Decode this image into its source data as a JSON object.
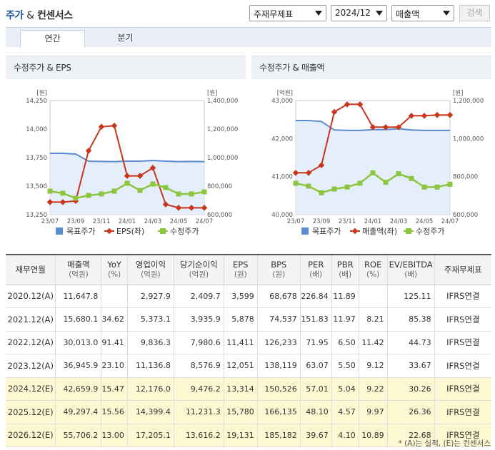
{
  "header": {
    "title_part1": "주가",
    "title_amp": "&",
    "title_part2": "컨센서스",
    "select1": "주재무제표",
    "select2": "2024/12",
    "select3": "매출액",
    "search_button": "검색"
  },
  "tabs": [
    {
      "label": "연간",
      "active": true
    },
    {
      "label": "분기",
      "active": false
    }
  ],
  "chart_left": {
    "title": "수정주가 & EPS",
    "left_unit": "[원]",
    "right_unit": "[원]",
    "left_ticks": [
      "14,250",
      "14,000",
      "13,750",
      "13,500",
      "13,250"
    ],
    "right_ticks": [
      "1,400,000",
      "1,200,000",
      "1,000,000",
      "800,000",
      "600,000"
    ],
    "x_ticks": [
      "23/07",
      "23/09",
      "23/11",
      "24/01",
      "24/03",
      "24/05",
      "24/07"
    ],
    "legend": [
      "목표주가",
      "EPS(좌)",
      "수정주가"
    ]
  },
  "chart_right": {
    "title": "수정주가 & 매출액",
    "left_unit": "[억원]",
    "right_unit": "[원]",
    "left_ticks": [
      "43,000",
      "42,000",
      "41,000",
      "40,000"
    ],
    "right_ticks": [
      "1,200,000",
      "1,000,000",
      "800,000",
      "600,000"
    ],
    "x_ticks": [
      "23/07",
      "23/09",
      "23/11",
      "24/01",
      "24/03",
      "24/05",
      "24/07"
    ],
    "legend": [
      "목표주가",
      "매출액(좌)",
      "수정주가"
    ]
  },
  "chart_data": [
    {
      "type": "line",
      "title": "수정주가 & EPS",
      "x": [
        "23/07",
        "23/08",
        "23/09",
        "23/10",
        "23/11",
        "23/12",
        "24/01",
        "24/02",
        "24/03",
        "24/04",
        "24/05",
        "24/06",
        "24/07"
      ],
      "ylim_left": [
        13250,
        14250
      ],
      "ylim_right": [
        600000,
        1400000
      ],
      "series": [
        {
          "name": "목표주가",
          "axis": "right",
          "color": "#5b8bd0",
          "values": [
            1030000,
            1030000,
            1025000,
            975000,
            973000,
            972000,
            975000,
            975000,
            980000,
            975000,
            972000,
            973000,
            972000
          ]
        },
        {
          "name": "EPS(좌)",
          "axis": "left",
          "color": "#c9361c",
          "values": [
            13360,
            13360,
            13370,
            13810,
            14020,
            14030,
            13590,
            13590,
            13660,
            13340,
            13310,
            13310,
            13310
          ]
        },
        {
          "name": "수정주가",
          "axis": "right",
          "color": "#8cc63f",
          "values": [
            765000,
            750000,
            715000,
            735000,
            745000,
            765000,
            820000,
            770000,
            815000,
            790000,
            745000,
            745000,
            760000
          ]
        }
      ]
    },
    {
      "type": "line",
      "title": "수정주가 & 매출액",
      "x": [
        "23/07",
        "23/08",
        "23/09",
        "23/10",
        "23/11",
        "23/12",
        "24/01",
        "24/02",
        "24/03",
        "24/04",
        "24/05",
        "24/06",
        "24/07"
      ],
      "ylim_left": [
        40000,
        43000
      ],
      "ylim_right": [
        600000,
        1200000
      ],
      "series": [
        {
          "name": "목표주가",
          "axis": "right",
          "color": "#5b8bd0",
          "values": [
            1095000,
            1095000,
            1090000,
            1045000,
            1043000,
            1043000,
            1047000,
            1047000,
            1052000,
            1045000,
            1043000,
            1043000,
            1043000
          ]
        },
        {
          "name": "매출액(좌)",
          "axis": "left",
          "color": "#c9361c",
          "values": [
            41100,
            41100,
            41300,
            42700,
            42900,
            42900,
            42300,
            42300,
            42300,
            42600,
            42600,
            42620,
            42620
          ]
        },
        {
          "name": "수정주가",
          "axis": "right",
          "color": "#8cc63f",
          "values": [
            765000,
            750000,
            715000,
            735000,
            745000,
            765000,
            820000,
            770000,
            815000,
            790000,
            745000,
            745000,
            760000
          ]
        }
      ]
    }
  ],
  "table": {
    "headers": [
      {
        "label": "재무연월",
        "unit": ""
      },
      {
        "label": "매출액",
        "unit": "(억원)"
      },
      {
        "label": "YoY",
        "unit": "(%)"
      },
      {
        "label": "영업이익",
        "unit": "(억원)"
      },
      {
        "label": "당기순이익",
        "unit": "(억원)"
      },
      {
        "label": "EPS",
        "unit": "(원)"
      },
      {
        "label": "BPS",
        "unit": "(원)"
      },
      {
        "label": "PER",
        "unit": "(배)"
      },
      {
        "label": "PBR",
        "unit": "(배)"
      },
      {
        "label": "ROE",
        "unit": "(%)"
      },
      {
        "label": "EV/EBITDA",
        "unit": "(배)"
      },
      {
        "label": "주재무제표",
        "unit": ""
      }
    ],
    "rows": [
      {
        "estimate": false,
        "cells": [
          "2020.12(A)",
          "11,647.8",
          "",
          "2,927.9",
          "2,409.7",
          "3,599",
          "68,678",
          "226.84",
          "11.89",
          "",
          "125.11",
          "IFRS연결"
        ]
      },
      {
        "estimate": false,
        "cells": [
          "2021.12(A)",
          "15,680.1",
          "34.62",
          "5,373.1",
          "3,935.9",
          "5,878",
          "74,537",
          "151.83",
          "11.97",
          "8.21",
          "85.38",
          "IFRS연결"
        ]
      },
      {
        "estimate": false,
        "cells": [
          "2022.12(A)",
          "30,013.0",
          "91.41",
          "9,836.3",
          "7,980.6",
          "11,411",
          "126,233",
          "71.95",
          "6.50",
          "11.42",
          "44.73",
          "IFRS연결"
        ]
      },
      {
        "estimate": false,
        "cells": [
          "2023.12(A)",
          "36,945.9",
          "23.10",
          "11,136.8",
          "8,576.9",
          "12,051",
          "138,119",
          "63.07",
          "5.50",
          "9.12",
          "33.67",
          "IFRS연결"
        ]
      },
      {
        "estimate": true,
        "cells": [
          "2024.12(E)",
          "42,659.9",
          "15.47",
          "12,176.0",
          "9,476.2",
          "13,314",
          "150,526",
          "57.01",
          "5.04",
          "9.22",
          "30.26",
          "IFRS연결"
        ]
      },
      {
        "estimate": true,
        "cells": [
          "2025.12(E)",
          "49,297.4",
          "15.56",
          "14,399.4",
          "11,231.3",
          "15,780",
          "166,135",
          "48.10",
          "4.57",
          "9.97",
          "26.36",
          "IFRS연결"
        ]
      },
      {
        "estimate": true,
        "cells": [
          "2026.12(E)",
          "55,706.2",
          "13.00",
          "17,205.1",
          "13,616.2",
          "19,131",
          "185,182",
          "39.67",
          "4.10",
          "10.89",
          "22.68",
          "IFRS연결"
        ]
      }
    ]
  },
  "note": "* (A)는 실적, (E)는 컨센서스"
}
